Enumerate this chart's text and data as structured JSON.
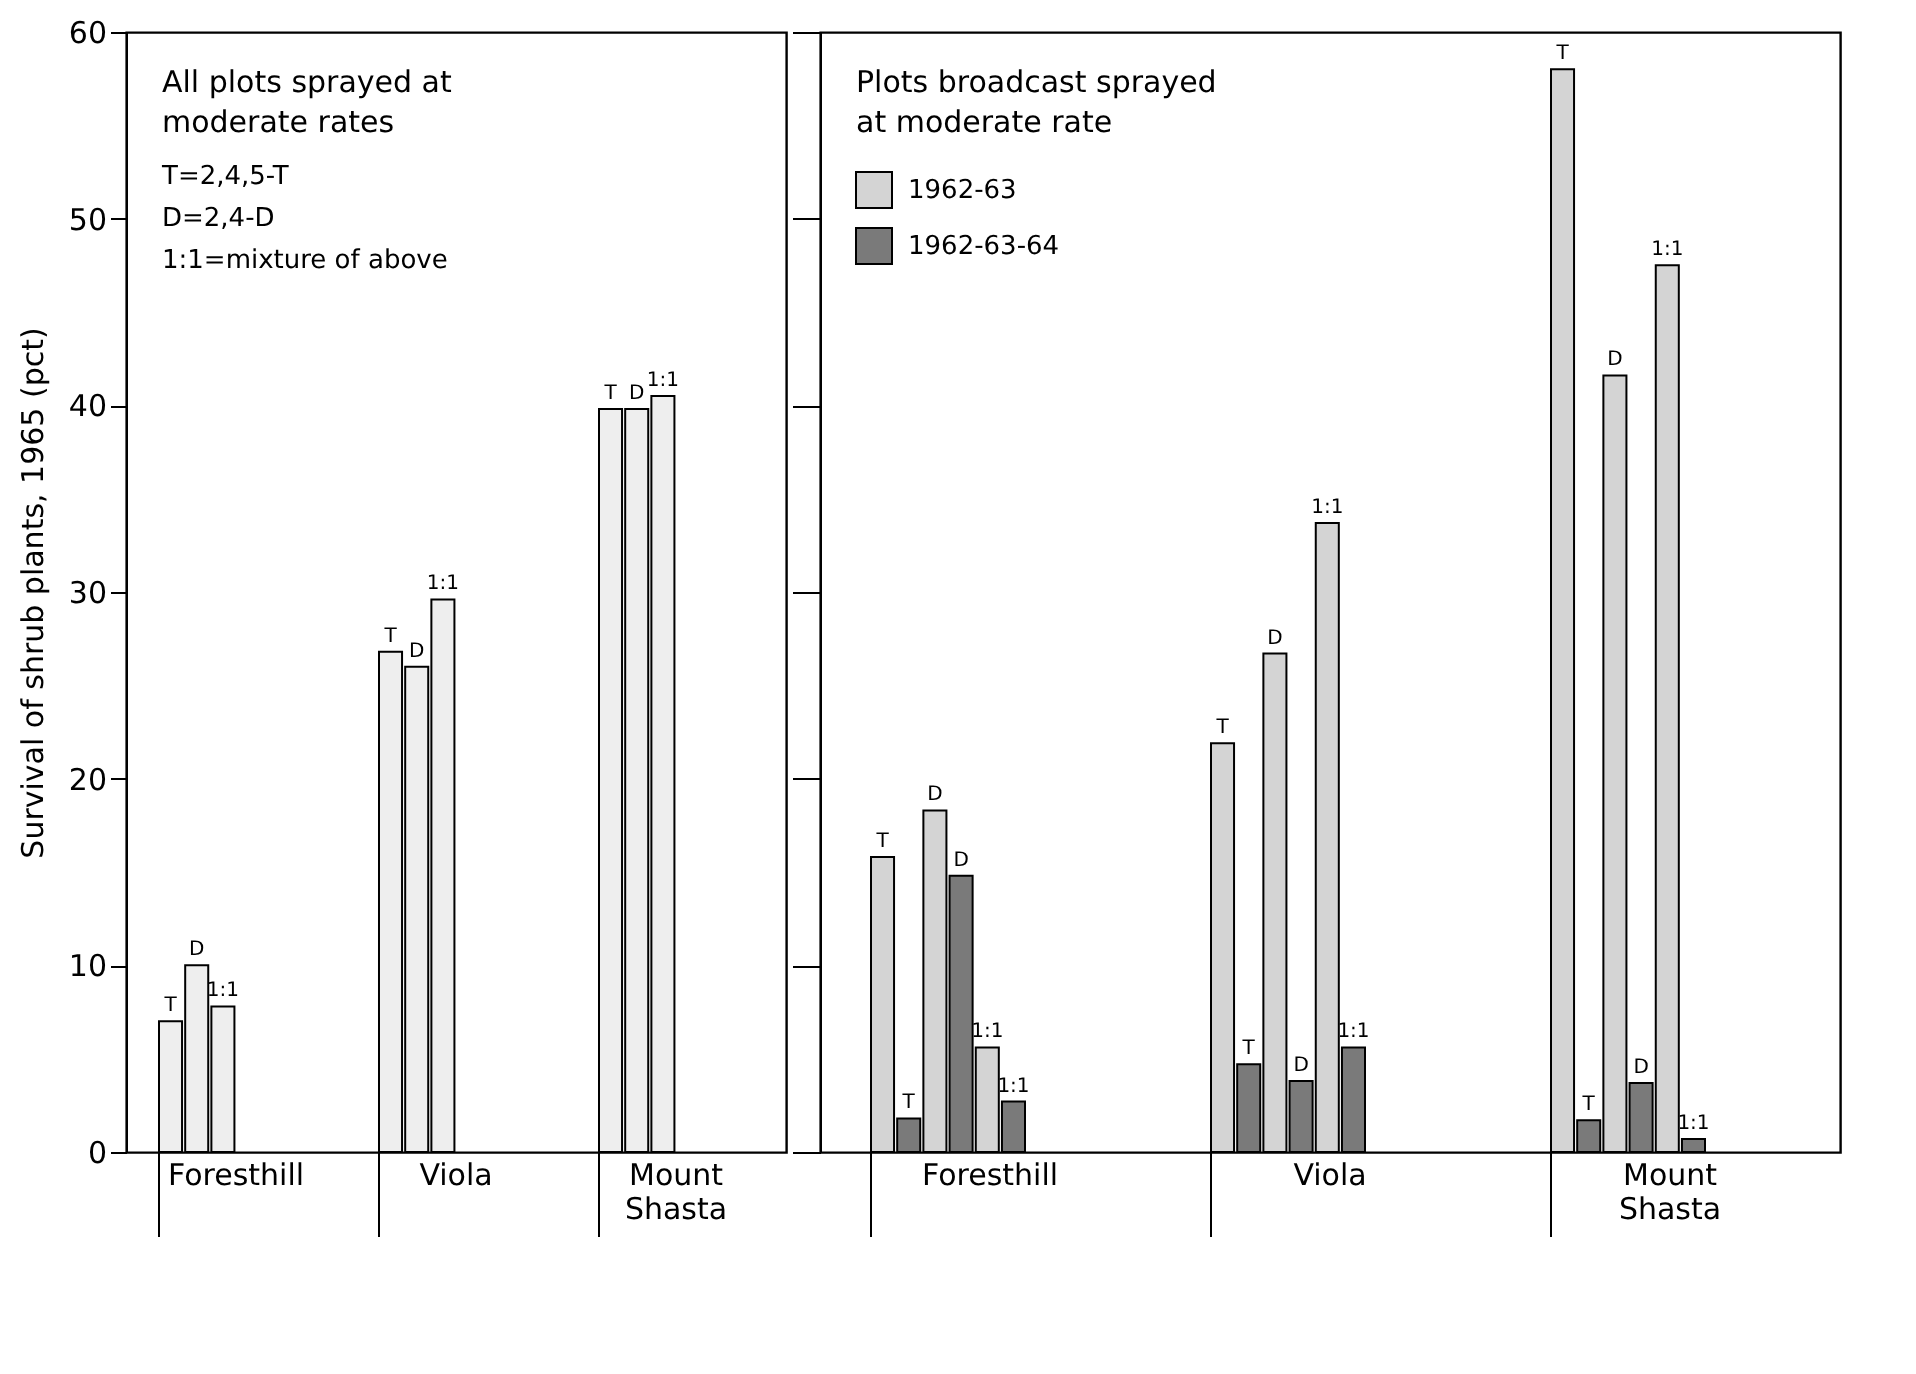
{
  "chart_data": [
    {
      "type": "bar",
      "title": "All plots sprayed at\nmoderate rates",
      "ylabel": "Survival of shrub plants, 1965 (pct)",
      "categories": [
        "Foresthill",
        "Viola",
        "Mount Shasta"
      ],
      "series": [
        {
          "name": "T",
          "color": "#eeeeee",
          "values": [
            7,
            26.8,
            39.8
          ]
        },
        {
          "name": "D",
          "color": "#eeeeee",
          "values": [
            10,
            26,
            39.8
          ]
        },
        {
          "name": "1:1",
          "color": "#eeeeee",
          "values": [
            7.8,
            29.6,
            40.5
          ]
        }
      ],
      "annotations": [
        "T=2,4,5-T",
        "D=2,4-D",
        "1:1=mixture of above"
      ],
      "ylim": [
        0,
        60
      ],
      "yticks": [
        0,
        10,
        20,
        30,
        40,
        50,
        60
      ],
      "grid": false,
      "legend": false
    },
    {
      "type": "bar",
      "title": "Plots broadcast sprayed\nat moderate rate",
      "categories": [
        "Foresthill",
        "Viola",
        "Mount Shasta"
      ],
      "series": [
        {
          "name": "1962-63",
          "color": "#d4d4d4",
          "values": [
            15.8,
            21.9,
            58
          ],
          "value_labels": [
            "T",
            "T",
            "T"
          ]
        },
        {
          "name": "1962-63-64",
          "color": "#7a7a7a",
          "values": [
            1.8,
            4.7,
            1.7
          ],
          "value_labels": [
            "T",
            "T",
            "T"
          ]
        },
        {
          "color": "#d4d4d4",
          "values": [
            18.3,
            26.7,
            41.6
          ],
          "value_labels": [
            "D",
            "D",
            "D"
          ]
        },
        {
          "color": "#7a7a7a",
          "values": [
            14.8,
            3.8,
            3.7
          ],
          "value_labels": [
            "D",
            "D",
            "D"
          ]
        },
        {
          "color": "#d4d4d4",
          "values": [
            5.6,
            33.7,
            47.5
          ],
          "value_labels": [
            "1:1",
            "1:1",
            "1:1"
          ]
        },
        {
          "color": "#7a7a7a",
          "values": [
            2.7,
            5.6,
            0.7
          ],
          "value_labels": [
            "1:1",
            "1:1",
            "1:1"
          ]
        }
      ],
      "ylim": [
        0,
        60
      ],
      "yticks": [
        0,
        10,
        20,
        30,
        40,
        50,
        60
      ],
      "grid": false,
      "legend": "top left",
      "tick_labels": "x"
    }
  ]
}
